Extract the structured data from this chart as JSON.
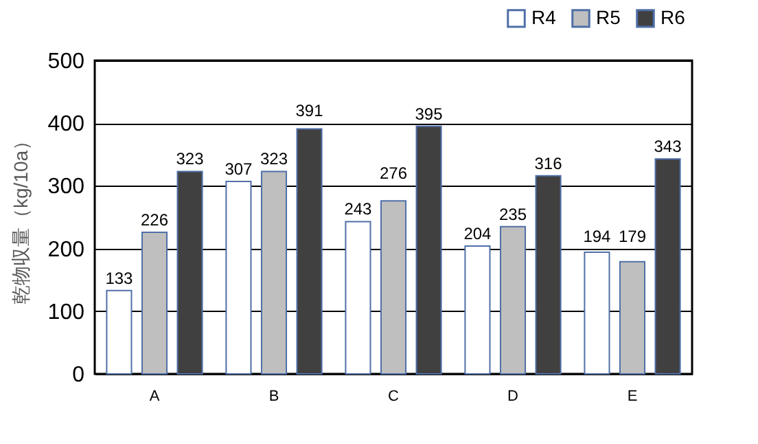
{
  "chart_data": {
    "type": "bar",
    "ylabel": "乾物収量（kg/10a）",
    "categories": [
      "A",
      "B",
      "C",
      "D",
      "E"
    ],
    "series": [
      {
        "name": "R4",
        "color": "#ffffff",
        "values": [
          133,
          307,
          243,
          204,
          194
        ]
      },
      {
        "name": "R5",
        "color": "#bfbfbf",
        "values": [
          226,
          323,
          276,
          235,
          179
        ]
      },
      {
        "name": "R6",
        "color": "#404040",
        "values": [
          323,
          391,
          395,
          316,
          343
        ]
      }
    ],
    "ylim": [
      0,
      500
    ],
    "yticks": [
      0,
      100,
      200,
      300,
      400,
      500
    ],
    "grid": "y",
    "legend": "top right",
    "data_labels": true
  }
}
